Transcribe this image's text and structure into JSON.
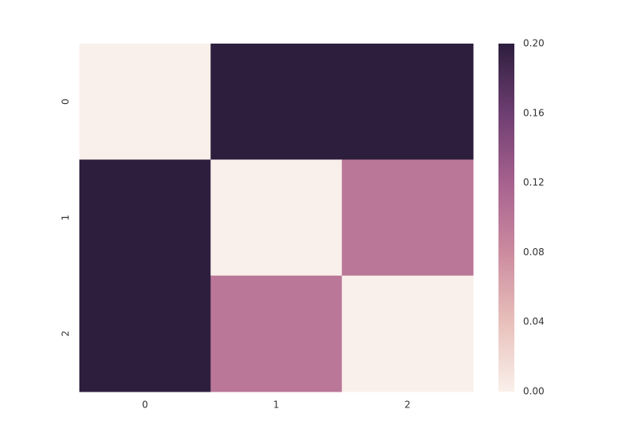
{
  "chart_data": {
    "type": "heatmap",
    "x": [
      "0",
      "1",
      "2"
    ],
    "y": [
      "0",
      "1",
      "2"
    ],
    "values": [
      [
        0,
        0.2,
        0.2
      ],
      [
        0.2,
        0,
        0.1
      ],
      [
        0.2,
        0.1,
        0
      ]
    ],
    "clim": [
      0,
      0.2
    ],
    "cticks": [
      {
        "value": 0,
        "label": "0.00"
      },
      0.04,
      0.08,
      0.12,
      0.16,
      {
        "value": 0.2,
        "label": "0.20"
      }
    ],
    "colormap": [
      "#faf0eb",
      "#e8c0bb",
      "#cc8b9f",
      "#a7628f",
      "#6e3e71",
      "#2d1e3e"
    ]
  }
}
